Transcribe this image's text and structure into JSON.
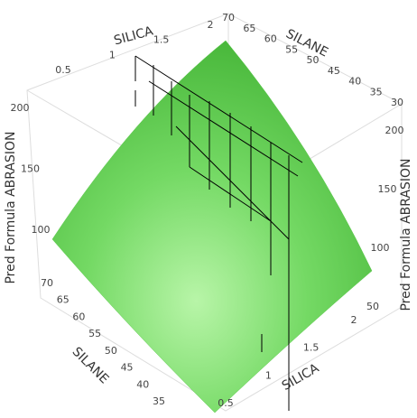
{
  "chart_data": {
    "type": "surface3d",
    "x_label": "SILICA",
    "y_label": "SILANE",
    "z_label": "Pred Formula ABRASION",
    "xticks": [
      0.5,
      1,
      1.5,
      2
    ],
    "yticks_top": [
      30,
      35,
      40,
      45,
      50,
      55,
      60,
      65,
      70
    ],
    "yticks_bottom": [
      35,
      40,
      45,
      50,
      55,
      60,
      65,
      70
    ],
    "zticks_left": [
      100,
      150,
      200
    ],
    "zticks_right": [
      50,
      100,
      150,
      200
    ],
    "color": "#5ec94f"
  }
}
